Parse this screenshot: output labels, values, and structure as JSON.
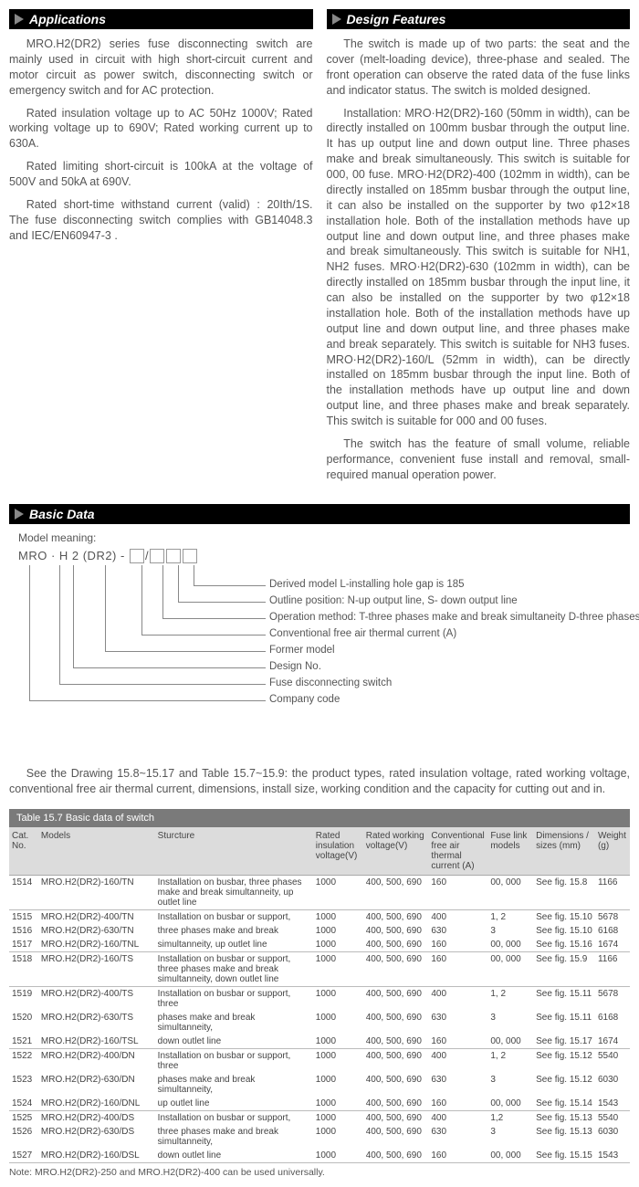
{
  "sections": {
    "applications": {
      "title": "Applications",
      "paragraphs": [
        "MRO.H2(DR2) series fuse disconnecting switch are mainly used in circuit with high short-circuit current and motor circuit as power switch, disconnecting switch or emergency switch and for AC protection.",
        "Rated insulation voltage up to AC 50Hz 1000V; Rated working voltage up to 690V; Rated working current up to 630A.",
        "Rated limiting short-circuit is 100kA at the voltage of 500V and 50kA at 690V.",
        "Rated short-time withstand current (valid) : 20Ith/1S. The fuse disconnecting switch complies with GB14048.3 and IEC/EN60947-3 ."
      ]
    },
    "design": {
      "title": "Design Features",
      "paragraphs": [
        "The switch is made up of two parts: the seat and the cover (melt-loading device), three-phase and sealed. The front operation can observe the rated data of the fuse links and indicator status. The switch is molded designed.",
        "Installation: MRO·H2(DR2)-160 (50mm in width), can be directly installed on 100mm busbar through the output line. It has up output line and down output line. Three phases make and break simultaneously. This switch is suitable for 000, 00 fuse. MRO·H2(DR2)-400 (102mm in width), can be directly installed on 185mm busbar through the output line, it can also be installed on the supporter by two φ12×18 installation hole. Both of the installation methods have up output line and down output line, and three phases make and break simultaneously. This switch is suitable for NH1, NH2 fuses. MRO·H2(DR2)-630 (102mm in width), can be directly installed on 185mm busbar through the input line, it can also be installed on the supporter by two φ12×18 installation hole. Both of the installation methods have up output line and down output line, and three phases make and break separately. This switch is suitable for NH3 fuses. MRO·H2(DR2)-160/L (52mm in width), can be directly installed on 185mm busbar through the input line. Both of the installation methods have up output line and down output line, and three phases make and break separately. This switch is suitable for 000 and 00 fuses.",
        "The switch has the feature of small volume, reliable performance, convenient fuse install and removal, small-required manual operation power."
      ]
    },
    "basic_data": {
      "title": "Basic Data",
      "model_meaning_label": "Model meaning:",
      "model_code_prefix": "MRO · H 2  (DR2) - ",
      "model_slash": "/",
      "brackets": [
        "Derived model L-installing hole gap is 185",
        "Outline position: N-up output line, S- down output line",
        "Operation method: T-three phases make and break simultaneity D-three phases make and break separately",
        "Conventional free air thermal current (A)",
        "Former model",
        "Design No.",
        "Fuse disconnecting switch",
        "Company code"
      ],
      "see_drawing": "See the Drawing 15.8~15.17 and Table 15.7~15.9: the product types, rated insulation voltage, rated working voltage, conventional free air thermal current, dimensions, install size, working condition and the capacity for cutting out and in."
    },
    "table": {
      "title": "Table 15.7    Basic data of switch",
      "headers": [
        "Cat. No.",
        "Models",
        "Sturcture",
        "Rated insulation voltage(V)",
        "Rated working voltage(V)",
        "Conventional free air thermal current (A)",
        "Fuse link models",
        "Dimensions / sizes (mm)",
        "Weight (g)"
      ],
      "groups": [
        {
          "rows": [
            [
              "1514",
              "MRO.H2(DR2)-160/TN",
              "Installation on busbar, three phases make and break simultanneity, up outlet line",
              "1000",
              "400, 500, 690",
              "160",
              "00, 000",
              "See fig. 15.8",
              "1166"
            ]
          ]
        },
        {
          "rows": [
            [
              "1515",
              "MRO.H2(DR2)-400/TN",
              "Installation on busbar or support,",
              "1000",
              "400, 500, 690",
              "400",
              "1, 2",
              "See fig. 15.10",
              "5678"
            ],
            [
              "1516",
              "MRO.H2(DR2)-630/TN",
              "three phases make and break",
              "1000",
              "400, 500, 690",
              "630",
              "3",
              "See fig. 15.10",
              "6168"
            ],
            [
              "1517",
              "MRO.H2(DR2)-160/TNL",
              "simultanneity, up outlet line",
              "1000",
              "400, 500, 690",
              "160",
              "00, 000",
              "See fig. 15.16",
              "1674"
            ]
          ]
        },
        {
          "rows": [
            [
              "1518",
              "MRO.H2(DR2)-160/TS",
              "Installation on busbar or support, three phases make and break simultanneity, down outlet line",
              "1000",
              "400, 500, 690",
              "160",
              "00, 000",
              "See fig. 15.9",
              "1166"
            ]
          ]
        },
        {
          "rows": [
            [
              "1519",
              "MRO.H2(DR2)-400/TS",
              "Installation on busbar or support, three",
              "1000",
              "400, 500, 690",
              "400",
              "1, 2",
              "See fig. 15.11",
              "5678"
            ],
            [
              "1520",
              "MRO.H2(DR2)-630/TS",
              "phases make and break simultanneity,",
              "1000",
              "400, 500, 690",
              "630",
              "3",
              "See fig. 15.11",
              "6168"
            ],
            [
              "1521",
              "MRO.H2(DR2)-160/TSL",
              "down outlet line",
              "1000",
              "400, 500, 690",
              "160",
              "00, 000",
              "See fig. 15.17",
              "1674"
            ]
          ]
        },
        {
          "rows": [
            [
              "1522",
              "MRO.H2(DR2)-400/DN",
              "Installation on busbar or support, three",
              "1000",
              "400, 500, 690",
              "400",
              "1, 2",
              "See fig. 15.12",
              "5540"
            ],
            [
              "1523",
              "MRO.H2(DR2)-630/DN",
              "phases make and break simultanneity,",
              "1000",
              "400, 500, 690",
              "630",
              "3",
              "See fig. 15.12",
              "6030"
            ],
            [
              "1524",
              "MRO.H2(DR2)-160/DNL",
              "up outlet line",
              "1000",
              "400, 500, 690",
              "160",
              "00, 000",
              "See fig. 15.14",
              "1543"
            ]
          ]
        },
        {
          "rows": [
            [
              "1525",
              "MRO.H2(DR2)-400/DS",
              "Installation on busbar or support,",
              "1000",
              "400, 500, 690",
              "400",
              "1,2",
              "See fig. 15.13",
              "5540"
            ],
            [
              "1526",
              "MRO.H2(DR2)-630/DS",
              "three phases make and break simultanneity,",
              "1000",
              "400, 500, 690",
              "630",
              "3",
              "See fig. 15.13",
              "6030"
            ],
            [
              "1527",
              "MRO.H2(DR2)-160/DSL",
              "down outlet line",
              "1000",
              "400, 500, 690",
              "160",
              "00, 000",
              "See fig. 15.15",
              "1543"
            ]
          ]
        }
      ],
      "note": "Note: MRO.H2(DR2)-250 and MRO.H2(DR2)-400 can be used universally."
    }
  },
  "colors": {
    "header_bg": "#000000",
    "header_fg": "#ffffff",
    "arrow": "#888888",
    "text": "#555555",
    "table_title_bg": "#7a7a7a",
    "th_bg": "#dcdcdc"
  }
}
